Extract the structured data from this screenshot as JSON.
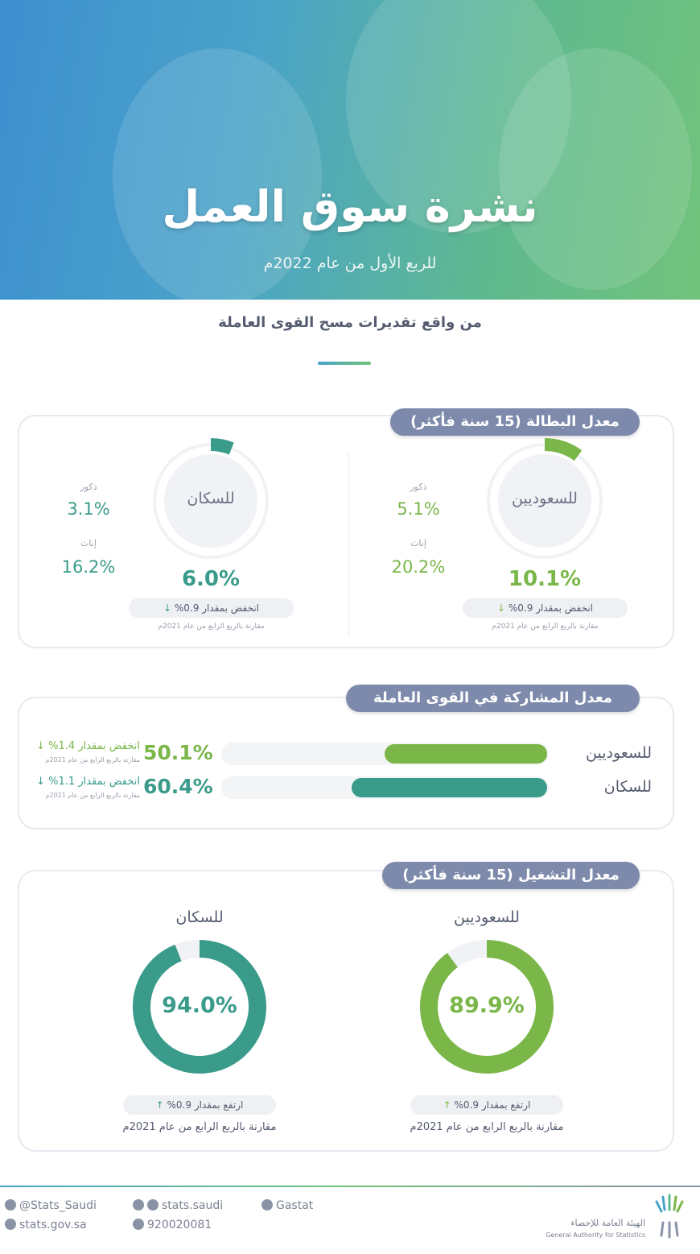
{
  "header": {
    "title": "نشرة سوق العمل",
    "subtitle": "للربع الأول من عام 2022م",
    "source_note": "من واقع تقديرات مسح القوى العاملة"
  },
  "colors": {
    "saudi": "#7ab648",
    "population": "#3a9b8b",
    "pill": "#7d8aab"
  },
  "unemployment": {
    "title": "معدل البطالة (15 سنة فأكثر)",
    "saudi": {
      "label": "للسعوديين",
      "value": "10.1%",
      "male_label": "ذكور",
      "male": "5.1%",
      "female_label": "إناث",
      "female": "20.2%",
      "change": "انخفض بمقدار 0.9%",
      "change_direction": "down",
      "compare": "مقارنة بالربع الرابع من عام 2021م"
    },
    "population": {
      "label": "للسكان",
      "value": "6.0%",
      "male_label": "ذكور",
      "male": "3.1%",
      "female_label": "إناث",
      "female": "16.2%",
      "change": "انخفض بمقدار 0.9%",
      "change_direction": "down",
      "compare": "مقارنة بالربع الرابع من عام 2021م"
    }
  },
  "participation": {
    "title": "معدل المشاركة في القوى العاملة",
    "rows": [
      {
        "label": "للسعوديين",
        "value": "50.1%",
        "change": "انخفض بمقدار 1.4%",
        "change_direction": "down",
        "compare": "مقارنة بالربع الرابع من عام 2021م"
      },
      {
        "label": "للسكان",
        "value": "60.4%",
        "change": "انخفض بمقدار 1.1%",
        "change_direction": "down",
        "compare": "مقارنة بالربع الرابع من عام 2021م"
      }
    ]
  },
  "employment": {
    "title": "معدل التشغيل (15 سنة فأكثر)",
    "saudi": {
      "label": "للسعوديين",
      "value": "89.9%",
      "change": "ارتفع بمقدار 0.9%",
      "change_direction": "up",
      "compare": "مقارنة بالربع الرابع من عام 2021م"
    },
    "population": {
      "label": "للسكان",
      "value": "94.0%",
      "change": "ارتفع بمقدار 0.9%",
      "change_direction": "up",
      "compare": "مقارنة بالربع الرابع من عام 2021م"
    }
  },
  "footer": {
    "twitter": "@Stats_Saudi",
    "social": "stats.saudi",
    "linkedin": "Gastat",
    "website": "stats.gov.sa",
    "phone": "920020081",
    "org_ar": "الهيئة العامة للإحصاء",
    "org_en": "General Authority for Statistics"
  },
  "chart_data": [
    {
      "type": "pie",
      "title": "معدل البطالة (15 سنة فأكثر)",
      "categories": [
        "للسعوديين",
        "للسكان"
      ],
      "values": [
        10.1,
        6.0
      ],
      "unit": "%"
    },
    {
      "type": "bar",
      "title": "معدل المشاركة في القوى العاملة",
      "categories": [
        "للسعوديين",
        "للسكان"
      ],
      "values": [
        50.1,
        60.4
      ],
      "unit": "%",
      "ylim": [
        0,
        100
      ]
    },
    {
      "type": "pie",
      "title": "معدل التشغيل (15 سنة فأكثر)",
      "categories": [
        "للسعوديين",
        "للسكان"
      ],
      "values": [
        89.9,
        94.0
      ],
      "unit": "%"
    }
  ]
}
